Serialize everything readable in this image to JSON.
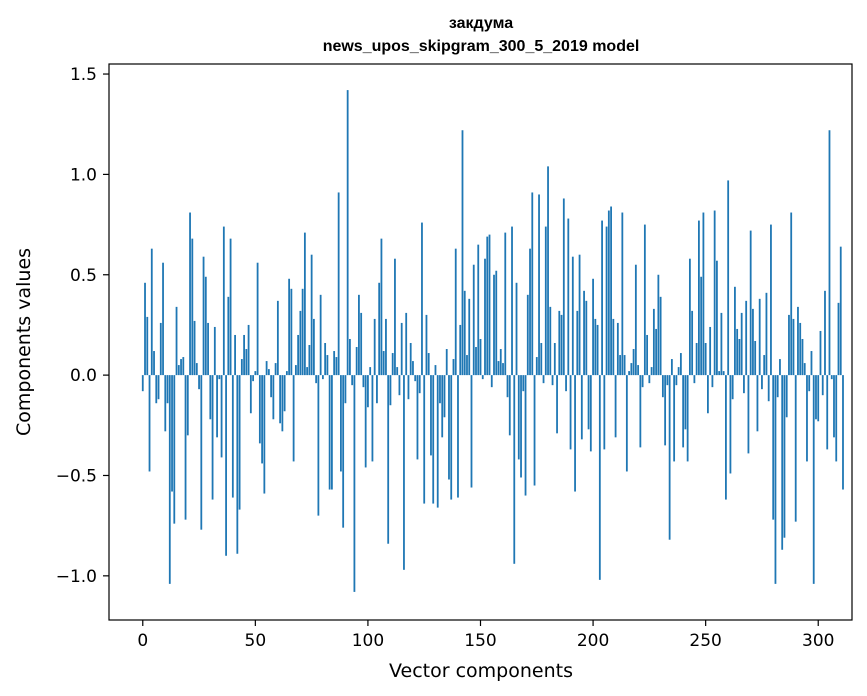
{
  "chart_data": {
    "type": "bar",
    "title_line1": "закдума",
    "title_line2": "news_upos_skipgram_300_5_2019 model",
    "xlabel": "Vector components",
    "ylabel": "Components values",
    "xlim": [
      -15,
      315
    ],
    "ylim": [
      -1.22,
      1.55
    ],
    "xticks": [
      0,
      50,
      100,
      150,
      200,
      250,
      300
    ],
    "xtick_labels": [
      "0",
      "50",
      "100",
      "150",
      "200",
      "250",
      "300"
    ],
    "yticks": [
      -1.0,
      -0.5,
      0.0,
      0.5,
      1.0,
      1.5
    ],
    "ytick_labels": [
      "−1.0",
      "−0.5",
      "0.0",
      "0.5",
      "1.0",
      "1.5"
    ],
    "color": "#1f77b4",
    "grid": false,
    "legend": "none",
    "x_start": 0,
    "values": [
      -0.08,
      0.46,
      0.29,
      -0.48,
      0.63,
      0.12,
      -0.14,
      -0.12,
      0.26,
      0.56,
      -0.28,
      -0.14,
      -1.04,
      -0.58,
      -0.74,
      0.34,
      0.05,
      0.08,
      0.09,
      -0.72,
      -0.3,
      0.81,
      0.68,
      0.27,
      0.06,
      -0.07,
      -0.77,
      0.59,
      0.49,
      0.26,
      -0.22,
      -0.62,
      0.24,
      -0.31,
      -0.02,
      -0.41,
      0.74,
      -0.9,
      0.39,
      0.68,
      -0.61,
      0.2,
      -0.89,
      -0.67,
      0.08,
      0.2,
      0.13,
      0.25,
      -0.19,
      -0.03,
      0.02,
      0.56,
      -0.34,
      -0.44,
      -0.59,
      0.07,
      0.03,
      -0.11,
      -0.22,
      0.06,
      0.37,
      -0.24,
      -0.28,
      -0.18,
      0.02,
      0.48,
      0.43,
      -0.43,
      0.05,
      0.2,
      0.32,
      0.43,
      0.71,
      0.04,
      0.15,
      0.6,
      0.28,
      -0.04,
      -0.7,
      0.4,
      -0.02,
      0.16,
      0.1,
      -0.57,
      -0.57,
      0.12,
      0.09,
      0.91,
      -0.48,
      -0.76,
      -0.14,
      1.42,
      0.18,
      -0.05,
      -1.08,
      0.14,
      0.4,
      0.31,
      -0.06,
      -0.46,
      -0.16,
      0.04,
      -0.43,
      0.28,
      -0.14,
      0.46,
      0.68,
      0.12,
      0.28,
      -0.84,
      -0.15,
      0.11,
      0.58,
      0.04,
      -0.1,
      0.26,
      -0.97,
      0.31,
      -0.12,
      0.16,
      0.07,
      -0.03,
      -0.42,
      -0.09,
      0.76,
      -0.64,
      0.3,
      0.11,
      -0.4,
      -0.64,
      0.05,
      -0.66,
      -0.14,
      -0.31,
      -0.21,
      0.13,
      -0.52,
      -0.62,
      0.08,
      0.63,
      -0.61,
      0.25,
      1.22,
      0.42,
      0.1,
      0.38,
      -0.56,
      0.55,
      0.14,
      0.65,
      0.18,
      -0.02,
      0.58,
      0.69,
      0.7,
      -0.06,
      0.5,
      0.52,
      0.07,
      0.13,
      0.06,
      0.71,
      -0.11,
      -0.3,
      0.74,
      -0.94,
      0.46,
      -0.42,
      -0.51,
      -0.08,
      -0.6,
      0.4,
      0.63,
      0.91,
      -0.55,
      0.09,
      0.9,
      0.16,
      -0.04,
      0.74,
      1.04,
      0.34,
      -0.05,
      0.16,
      -0.29,
      0.32,
      0.3,
      0.88,
      -0.08,
      0.78,
      -0.37,
      0.59,
      -0.58,
      0.32,
      0.6,
      -0.32,
      0.42,
      0.37,
      -0.27,
      -0.38,
      0.48,
      0.28,
      0.25,
      -1.02,
      0.77,
      -0.37,
      0.74,
      0.82,
      0.84,
      0.28,
      -0.31,
      0.26,
      0.1,
      0.81,
      0.1,
      -0.48,
      0.02,
      0.06,
      0.13,
      0.55,
      0.05,
      -0.36,
      -0.06,
      0.75,
      0.2,
      -0.04,
      0.04,
      0.33,
      0.23,
      0.5,
      0.39,
      -0.11,
      -0.35,
      -0.05,
      -0.82,
      0.08,
      -0.43,
      -0.05,
      0.04,
      0.11,
      -0.36,
      -0.27,
      -0.43,
      0.58,
      0.32,
      -0.04,
      0.16,
      0.77,
      0.49,
      0.81,
      0.16,
      -0.19,
      0.24,
      -0.06,
      0.82,
      0.57,
      0.02,
      0.31,
      0.02,
      -0.62,
      0.97,
      -0.49,
      -0.12,
      0.44,
      0.23,
      0.18,
      0.31,
      -0.09,
      0.37,
      -0.39,
      0.72,
      0.33,
      0.17,
      -0.28,
      0.38,
      -0.07,
      0.1,
      0.41,
      -0.13,
      0.75,
      -0.72,
      -1.04,
      -0.11,
      0.08,
      -0.87,
      -0.81,
      -0.21,
      0.3,
      0.81,
      0.28,
      -0.73,
      0.34,
      0.26,
      0.18,
      0.06,
      -0.43,
      -0.08,
      0.12,
      -1.04,
      -0.22,
      -0.23,
      0.22,
      -0.1,
      0.42,
      -0.37,
      1.22,
      -0.02,
      -0.31,
      -0.43,
      0.36,
      0.64,
      -0.57
    ]
  }
}
